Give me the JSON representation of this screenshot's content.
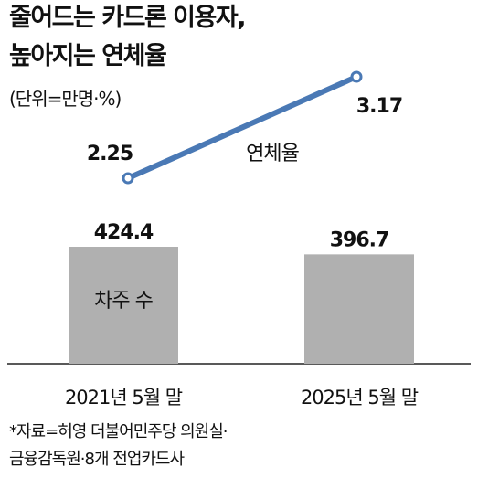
{
  "title_line1": "줄어드는 카드론 이용자,",
  "title_line2": "높아지는 연체율",
  "unit": "(단위=만명·%)",
  "source_line1": "*자료=허영 더불어민주당 의원실·",
  "source_line2": "금융감독원·8개 전업카드사",
  "colors": {
    "bar": "#b0b0b0",
    "line": "#4a79b5",
    "text": "#111111"
  },
  "chart_data": {
    "type": "bar",
    "categories": [
      "2021년 5월 말",
      "2025년 5월 말"
    ],
    "series": [
      {
        "name": "차주 수",
        "type": "bar",
        "values": [
          424.4,
          396.7
        ],
        "labels": [
          "424.4",
          "396.7"
        ]
      },
      {
        "name": "연체율",
        "type": "line",
        "values": [
          2.25,
          3.17
        ],
        "labels": [
          "2.25",
          "3.17"
        ]
      }
    ],
    "ylim_bar": [
      0,
      424.4
    ],
    "ylim_line": [
      2.25,
      3.17
    ]
  }
}
